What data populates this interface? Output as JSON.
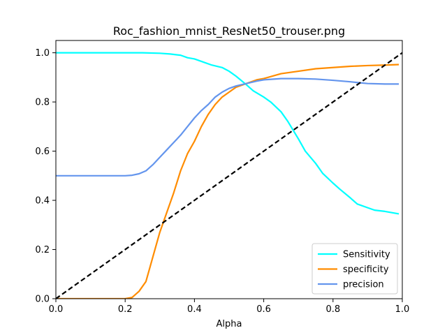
{
  "chart_data": {
    "type": "line",
    "title": "Roc_fashion_mnist_ResNet50_trouser.png",
    "xlabel": "Alpha",
    "ylabel": "",
    "xlim": [
      0,
      1
    ],
    "ylim": [
      0,
      1.05
    ],
    "xticks": [
      "0.0",
      "0.2",
      "0.4",
      "0.6",
      "0.8",
      "1.0"
    ],
    "yticks": [
      "0.0",
      "0.2",
      "0.4",
      "0.6",
      "0.8",
      "1.0"
    ],
    "grid": false,
    "legend_position": "lower-right",
    "series": [
      {
        "name": "Sensitivity",
        "color": "#00ffff",
        "x": [
          0.0,
          0.1,
          0.2,
          0.25,
          0.3,
          0.33,
          0.36,
          0.38,
          0.4,
          0.42,
          0.45,
          0.48,
          0.5,
          0.52,
          0.55,
          0.57,
          0.6,
          0.62,
          0.65,
          0.67,
          0.7,
          0.72,
          0.75,
          0.77,
          0.8,
          0.82,
          0.85,
          0.87,
          0.9,
          0.92,
          0.95,
          0.97,
          0.99
        ],
        "y": [
          1.0,
          1.0,
          1.0,
          1.0,
          0.998,
          0.995,
          0.99,
          0.98,
          0.975,
          0.965,
          0.95,
          0.94,
          0.925,
          0.905,
          0.87,
          0.845,
          0.82,
          0.8,
          0.76,
          0.72,
          0.65,
          0.6,
          0.55,
          0.51,
          0.47,
          0.445,
          0.41,
          0.385,
          0.37,
          0.36,
          0.355,
          0.35,
          0.345
        ]
      },
      {
        "name": "specificity",
        "color": "#ff8c00",
        "x": [
          0.0,
          0.1,
          0.2,
          0.22,
          0.24,
          0.26,
          0.28,
          0.3,
          0.32,
          0.34,
          0.36,
          0.38,
          0.4,
          0.42,
          0.44,
          0.46,
          0.48,
          0.5,
          0.52,
          0.55,
          0.58,
          0.6,
          0.65,
          0.7,
          0.75,
          0.8,
          0.85,
          0.9,
          0.95,
          0.99
        ],
        "y": [
          0.0,
          0.0,
          0.0,
          0.005,
          0.03,
          0.07,
          0.17,
          0.27,
          0.35,
          0.43,
          0.52,
          0.59,
          0.64,
          0.7,
          0.75,
          0.79,
          0.82,
          0.84,
          0.86,
          0.875,
          0.89,
          0.895,
          0.915,
          0.925,
          0.935,
          0.94,
          0.945,
          0.948,
          0.95,
          0.952
        ]
      },
      {
        "name": "precision",
        "color": "#6495ed",
        "x": [
          0.0,
          0.1,
          0.2,
          0.22,
          0.24,
          0.26,
          0.28,
          0.3,
          0.32,
          0.34,
          0.36,
          0.38,
          0.4,
          0.42,
          0.44,
          0.46,
          0.48,
          0.5,
          0.52,
          0.55,
          0.58,
          0.6,
          0.65,
          0.7,
          0.75,
          0.8,
          0.85,
          0.9,
          0.95,
          0.99
        ],
        "y": [
          0.5,
          0.5,
          0.5,
          0.502,
          0.508,
          0.52,
          0.545,
          0.575,
          0.605,
          0.635,
          0.665,
          0.7,
          0.735,
          0.765,
          0.79,
          0.82,
          0.84,
          0.855,
          0.865,
          0.875,
          0.885,
          0.89,
          0.895,
          0.895,
          0.893,
          0.888,
          0.882,
          0.875,
          0.873,
          0.873
        ]
      }
    ],
    "reference_line": {
      "x": [
        0,
        1
      ],
      "y": [
        0,
        1
      ],
      "color": "#000000",
      "style": "dashed"
    }
  }
}
